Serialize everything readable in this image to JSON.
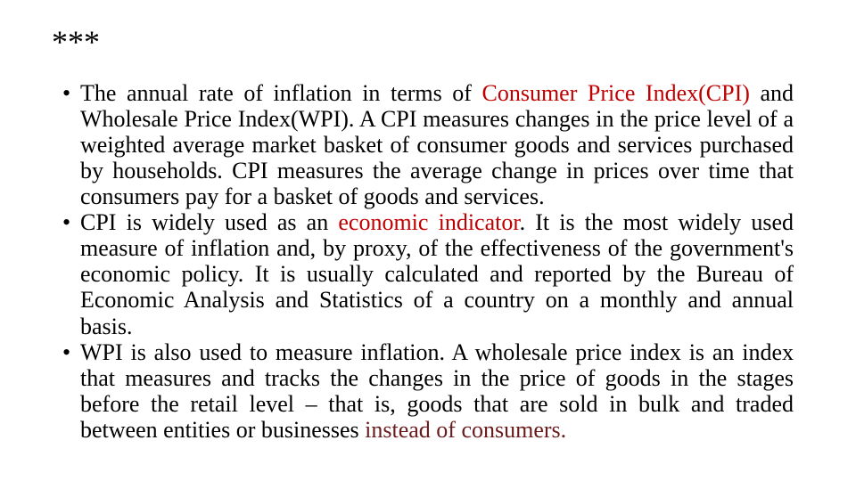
{
  "colors": {
    "text": "#000000",
    "highlight_red": "#c00000",
    "highlight_darkred": "#6a1a1a",
    "background": "#ffffff"
  },
  "typography": {
    "font_family": "Times New Roman",
    "heading_fontsize_pt": 27,
    "body_fontsize_pt": 19,
    "line_height": 1.12,
    "body_align": "justify"
  },
  "heading": "***",
  "bullets": [
    {
      "seg1_a": "The annual rate of inflation in terms of ",
      "seg1_b": "Consumer Price ",
      "seg1_c": "Index(CPI) ",
      "seg1_d": "and Wholesale Price Index(WPI). ",
      "seg1_e": "A CPI measures changes in the price level of a weighted average market basket of consumer goods and services purchased by households. CPI measures the average change in prices over time that consumers pay for a basket of goods and services."
    },
    {
      "seg2_a": "CPI is widely used as an ",
      "seg2_b": "economic indicator",
      "seg2_c": ". It is the most widely used measure of inflation and, by proxy, of the effectiveness of the government's economic policy. It is usually calculated and reported by the Bureau of Economic Analysis and Statistics of a country on a monthly and annual basis."
    },
    {
      "seg3_a": "WPI is also used to measure inflation. A wholesale price index is an index that measures and tracks the changes in the price of goods in the stages before the retail level – that is, goods that are sold in bulk and traded between entities or businesses ",
      "seg3_b": "instead of consumers."
    }
  ]
}
